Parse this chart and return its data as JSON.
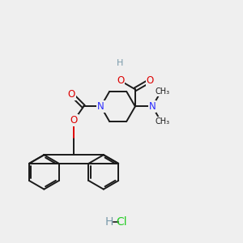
{
  "bg_color": "#efefef",
  "bond_color": "#1a1a1a",
  "N_color": "#2b2bff",
  "O_color": "#dd0000",
  "H_color": "#7a9aaa",
  "Cl_color": "#22cc22",
  "figsize": [
    3.0,
    3.0
  ],
  "dpi": 100,
  "xlim": [
    0,
    10
  ],
  "ylim": [
    0,
    10
  ]
}
